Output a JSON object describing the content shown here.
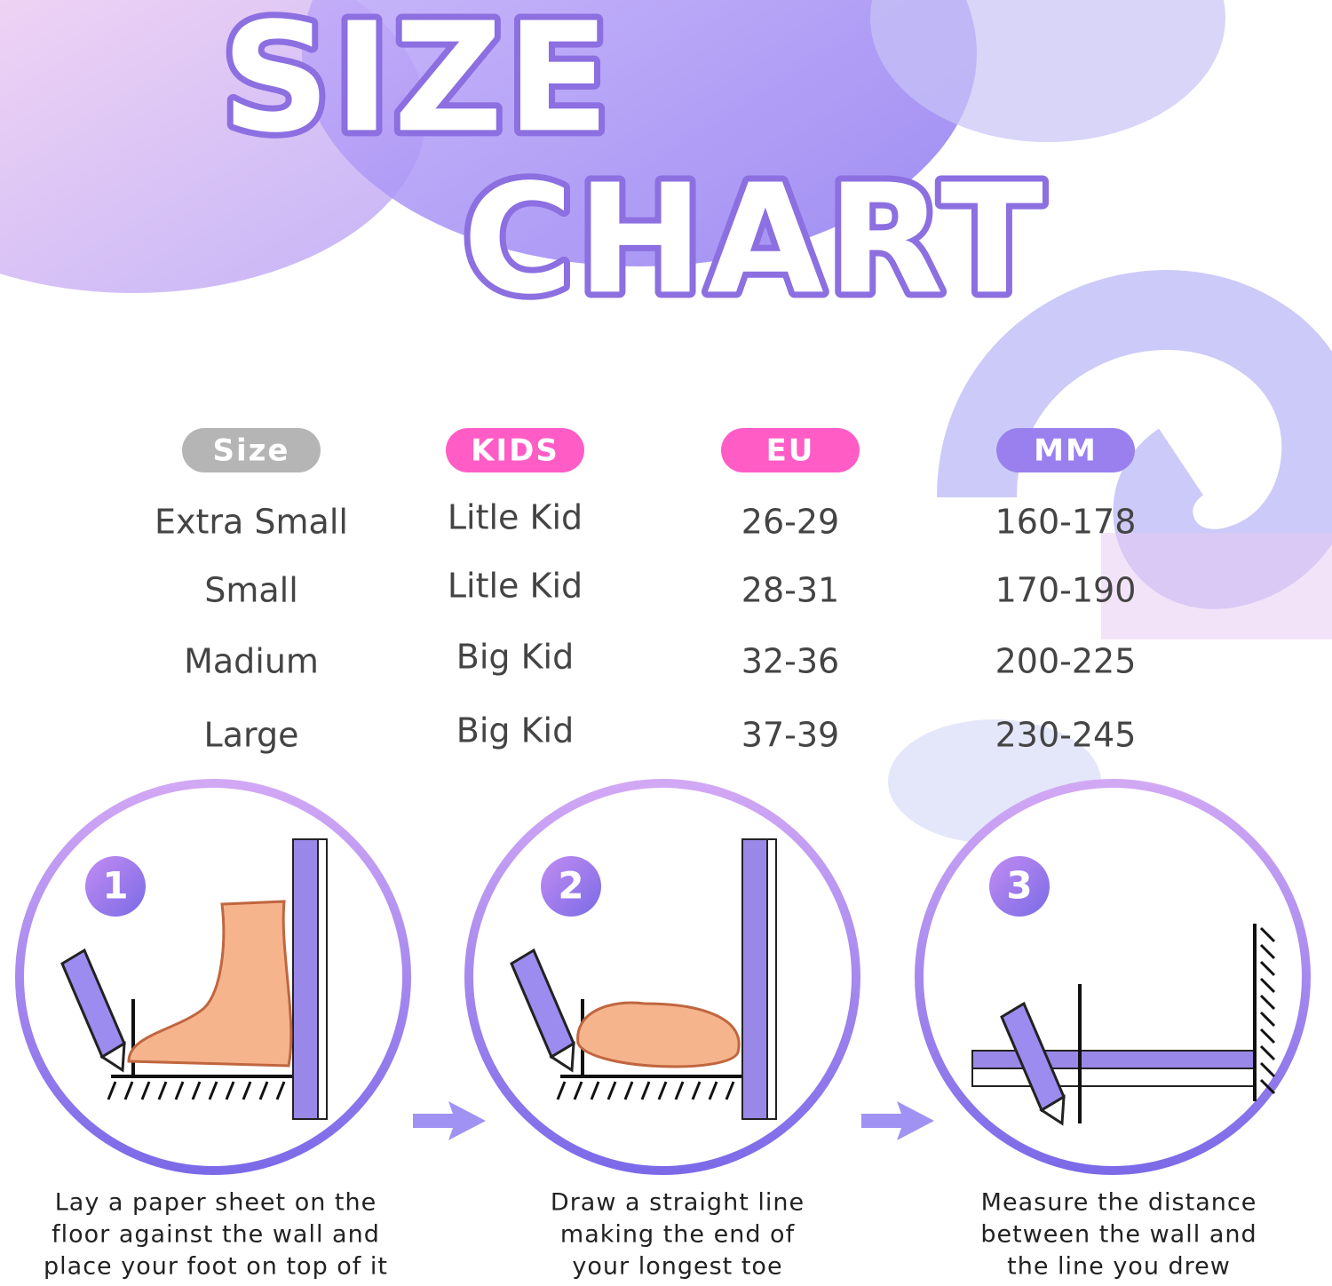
{
  "title": {
    "line1": "SIZE",
    "line2": "CHART"
  },
  "table": {
    "headers": [
      "Size",
      "KIDS",
      "EU",
      "MM"
    ],
    "rows": [
      [
        "Extra Small",
        "Litle Kid",
        "26-29",
        "160-178"
      ],
      [
        "Small",
        "Litle Kid",
        "28-31",
        "170-190"
      ],
      [
        "Madium",
        "Big Kid",
        "32-36",
        "200-225"
      ],
      [
        "Large",
        "Big Kid",
        "37-39",
        "230-245"
      ]
    ]
  },
  "steps": [
    {
      "number": "1",
      "caption": [
        "Lay a paper sheet on the",
        "floor against the wall and",
        "place your foot on top of it"
      ]
    },
    {
      "number": "2",
      "caption": [
        "Draw a straight line",
        "making the end of",
        "your longest toe"
      ]
    },
    {
      "number": "3",
      "caption": [
        "Measure the distance",
        "between the wall and",
        "the line you drew"
      ]
    }
  ]
}
